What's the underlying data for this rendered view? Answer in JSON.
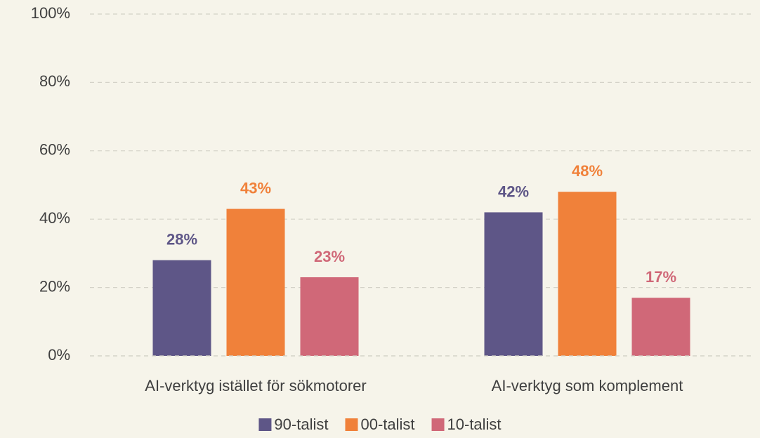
{
  "chart_data": {
    "type": "bar",
    "categories": [
      "AI-verktyg istället för sökmotorer",
      "AI-verktyg som komplement"
    ],
    "series": [
      {
        "name": "90-talist",
        "color": "#5e5687",
        "values": [
          28,
          42
        ],
        "value_labels": [
          "28%",
          "42%"
        ]
      },
      {
        "name": "00-talist",
        "color": "#f0813a",
        "values": [
          43,
          48
        ],
        "value_labels": [
          "43%",
          "48%"
        ]
      },
      {
        "name": "10-talist",
        "color": "#d06878",
        "values": [
          23,
          17
        ],
        "value_labels": [
          "23%",
          "17%"
        ]
      }
    ],
    "ylim": [
      0,
      100
    ],
    "yticks": [
      {
        "value": 0,
        "label": "0%"
      },
      {
        "value": 20,
        "label": "20%"
      },
      {
        "value": 40,
        "label": "40%"
      },
      {
        "value": 60,
        "label": "60%"
      },
      {
        "value": 80,
        "label": "80%"
      },
      {
        "value": 100,
        "label": "100%"
      }
    ],
    "grid": true,
    "legend": "bottom"
  }
}
